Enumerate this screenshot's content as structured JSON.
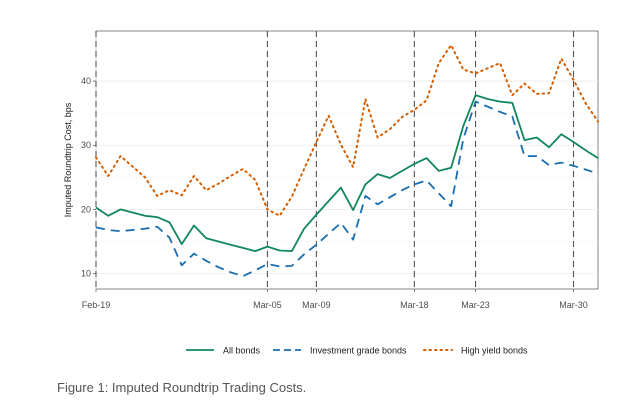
{
  "caption": "Figure 1: Imputed Roundtrip Trading Costs.",
  "chart_data": {
    "type": "line",
    "title": "",
    "xlabel": "",
    "ylabel": "Imputed Roundtrip Cost, bps",
    "x": [
      0,
      1,
      2,
      4,
      5,
      6,
      7,
      8,
      9,
      10,
      11,
      12,
      13,
      14,
      15,
      16,
      17,
      18,
      19,
      20,
      21,
      22,
      23,
      24,
      25,
      26,
      27,
      28,
      29,
      30,
      31,
      32,
      33,
      34,
      35,
      36,
      37,
      38,
      39,
      40,
      41
    ],
    "xlim": [
      0,
      41
    ],
    "ylim": [
      7.6,
      47.8
    ],
    "x_tick_values": [
      0,
      14,
      18,
      26,
      31,
      39
    ],
    "x_tick_labels": [
      "Feb-19",
      "Mar-05",
      "Mar-09",
      "Mar-18",
      "Mar-23",
      "Mar-30"
    ],
    "y_ticks": [
      10,
      20,
      30,
      40
    ],
    "event_lines": [
      0,
      14,
      18,
      26,
      31,
      39
    ],
    "grid": true,
    "legend_position": "bottom",
    "series": [
      {
        "name": "All bonds",
        "color": "#11875d",
        "dash": "solid",
        "values": [
          20.3,
          19.0,
          20.0,
          19.0,
          18.8,
          18.0,
          14.6,
          17.5,
          15.5,
          15.0,
          14.5,
          14.0,
          13.5,
          14.2,
          13.6,
          13.5,
          17.0,
          19.2,
          21.3,
          23.4,
          19.9,
          23.9,
          25.5,
          24.9,
          26.0,
          27.1,
          28.0,
          26.0,
          26.5,
          33.0,
          37.8,
          37.2,
          36.8,
          36.6,
          30.8,
          31.2,
          29.7,
          31.7,
          30.5,
          29.2,
          28.0
        ]
      },
      {
        "name": "Investment grade bonds",
        "color": "#1a6eb0",
        "dash": "dashed",
        "values": [
          17.2,
          16.8,
          16.6,
          17.0,
          17.3,
          15.6,
          11.3,
          13.1,
          12.0,
          11.0,
          10.2,
          9.6,
          10.5,
          11.5,
          11.1,
          11.2,
          13.0,
          14.5,
          16.2,
          17.9,
          15.3,
          22.1,
          20.8,
          21.9,
          23.0,
          23.9,
          24.5,
          22.5,
          20.5,
          31.0,
          36.8,
          36.0,
          35.2,
          34.5,
          28.3,
          28.3,
          26.9,
          27.3,
          26.8,
          26.2,
          25.6
        ]
      },
      {
        "name": "High yield bonds",
        "color": "#d55e00",
        "dash": "dotted",
        "values": [
          28.1,
          25.2,
          28.3,
          25.0,
          22.1,
          23.0,
          22.2,
          25.2,
          23.0,
          24.0,
          25.2,
          26.3,
          24.6,
          20.0,
          19.0,
          22.0,
          26.3,
          30.5,
          34.6,
          30.1,
          26.6,
          37.2,
          31.2,
          32.5,
          34.4,
          35.5,
          37.0,
          42.8,
          45.6,
          41.8,
          41.2,
          42.0,
          42.8,
          37.8,
          39.6,
          38.0,
          38.1,
          43.5,
          40.2,
          36.5,
          33.7
        ]
      }
    ]
  }
}
